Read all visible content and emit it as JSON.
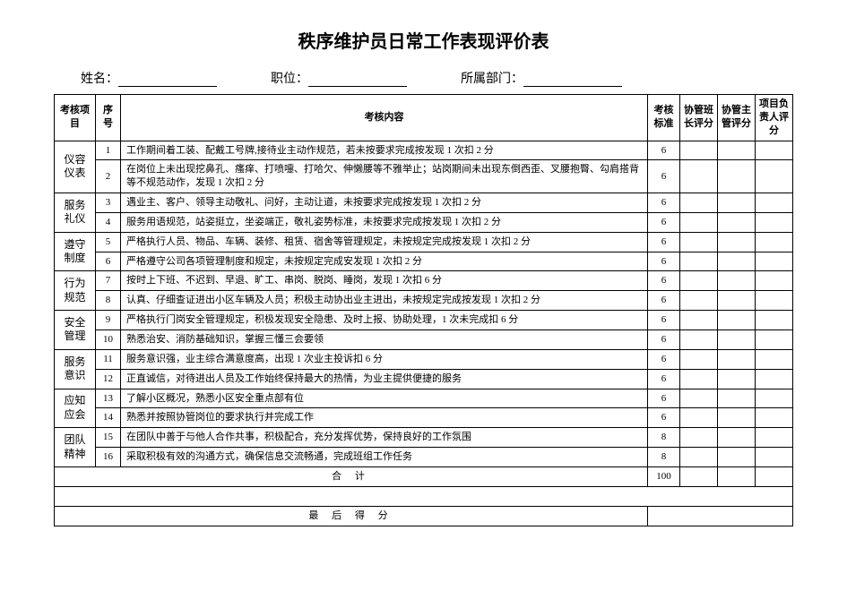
{
  "title": "秩序维护员日常工作表现评价表",
  "info": {
    "name_label": "姓名：",
    "position_label": "职位：",
    "dept_label": "所属部门："
  },
  "columns": {
    "category": "考核项目",
    "seq": "序号",
    "content": "考核内容",
    "standard": "考核标准",
    "score1": "协管班长评分",
    "score2": "协管主管评分",
    "score3": "项目负责人评分"
  },
  "categories": [
    {
      "name": "仪容仪表",
      "rows": [
        {
          "seq": 1,
          "content": "工作期间着工装、配戴工号牌,接待业主动作规范，若未按要求完成按发现 1 次扣 2 分",
          "std": 6
        },
        {
          "seq": 2,
          "content": "在岗位上未出现挖鼻孔、瘙痒、打喷嚏、打哈欠、伸懒腰等不雅举止；站岗期间未出现东倒西歪、叉腰抱臀、勾肩搭背等不规范动作，发现 1 次扣 2 分",
          "std": 6
        }
      ]
    },
    {
      "name": "服务礼仪",
      "rows": [
        {
          "seq": 3,
          "content": "遇业主、客户、领导主动敬礼、问好，主动让道，未按要求完成按发现 1 次扣 2 分",
          "std": 6
        },
        {
          "seq": 4,
          "content": "服务用语规范，站姿挺立，坐姿端正，敬礼姿势标准，未按要求完成按发现 1 次扣 2 分",
          "std": 6
        }
      ]
    },
    {
      "name": "遵守制度",
      "rows": [
        {
          "seq": 5,
          "content": "严格执行人员、物品、车辆、装修、租赁、宿舍等管理规定，未按规定完成按发现  1 次扣 2 分",
          "std": 6
        },
        {
          "seq": 6,
          "content": "严格遵守公司各项管理制度和规定，未按规定完成安发现 1 次扣 2 分",
          "std": 6
        }
      ]
    },
    {
      "name": "行为规范",
      "rows": [
        {
          "seq": 7,
          "content": "按时上下班、不迟到、早退、旷工、串岗、脱岗、睡岗，发现 1 次扣 6 分",
          "std": 6
        },
        {
          "seq": 8,
          "content": "认真、仔细查证进出小区车辆及人员；积极主动协出业主进出，未按规定完成按发现 1 次扣 2 分",
          "std": 6
        }
      ]
    },
    {
      "name": "安全管理",
      "rows": [
        {
          "seq": 9,
          "content": "严格执行门岗安全管理规定，积极发现安全隐患、及时上报、协助处理，1 次未完成扣 6 分",
          "std": 6
        },
        {
          "seq": 10,
          "content": "熟悉治安、消防基础知识，掌握三懂三会要领",
          "std": 6
        }
      ]
    },
    {
      "name": "服务意识",
      "rows": [
        {
          "seq": 11,
          "content": "服务意识强，业主综合满意度高，出现 1 次业主投诉扣 6 分",
          "std": 6
        },
        {
          "seq": 12,
          "content": "正直诚信，对待进出人员及工作始终保持最大的热情，为业主提供便捷的服务",
          "std": 6
        }
      ]
    },
    {
      "name": "应知应会",
      "rows": [
        {
          "seq": 13,
          "content": "了解小区概况，熟悉小区安全重点部有位",
          "std": 6
        },
        {
          "seq": 14,
          "content": "熟悉并按照协管岗位的要求执行并完成工作",
          "std": 6
        }
      ]
    },
    {
      "name": "团队精神",
      "rows": [
        {
          "seq": 15,
          "content": "在团队中善于与他人合作共事，积极配合，充分发挥优势，保持良好的工作氛围",
          "std": 8
        },
        {
          "seq": 16,
          "content": "采取积极有效的沟通方式，确保信息交流畅通，完成班组工作任务",
          "std": 8
        }
      ]
    }
  ],
  "total": {
    "label": "合  计",
    "value": 100
  },
  "final": {
    "label": "最 后 得 分"
  }
}
